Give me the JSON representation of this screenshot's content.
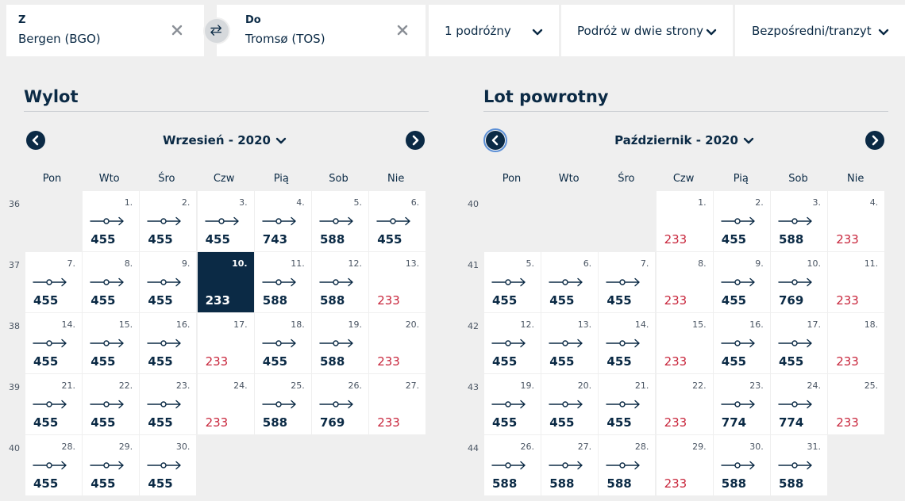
{
  "search": {
    "from": {
      "label": "Z",
      "value": "Bergen (BGO)"
    },
    "to": {
      "label": "Do",
      "value": "Tromsø (TOS)"
    },
    "travelers": "1 podróżny",
    "trip_type": "Podróż w dwie strony",
    "stops": "Bezpośredni/tranzyt"
  },
  "icons": {
    "clear": "close-icon",
    "swap": "swap-icon",
    "dropdown": "chevron-down-icon",
    "flight": "flight-arrow-icon"
  },
  "colors": {
    "navy": "#0b2a45",
    "low_price": "#c8263c",
    "selected_bg": "#0b2a45"
  },
  "departure": {
    "title": "Wylot",
    "month": "Wrzesień - 2020",
    "weekdays": [
      "Pon",
      "Wto",
      "Śro",
      "Czw",
      "Pią",
      "Sob",
      "Nie"
    ],
    "weeks": [
      {
        "num": "36",
        "days": [
          null,
          {
            "d": "1.",
            "p": "455"
          },
          {
            "d": "2.",
            "p": "455"
          },
          {
            "d": "3.",
            "p": "455"
          },
          {
            "d": "4.",
            "p": "743"
          },
          {
            "d": "5.",
            "p": "588"
          },
          {
            "d": "6.",
            "p": "455"
          }
        ]
      },
      {
        "num": "37",
        "days": [
          {
            "d": "7.",
            "p": "455"
          },
          {
            "d": "8.",
            "p": "455"
          },
          {
            "d": "9.",
            "p": "455"
          },
          {
            "d": "10.",
            "p": "233",
            "selected": true
          },
          {
            "d": "11.",
            "p": "588"
          },
          {
            "d": "12.",
            "p": "588"
          },
          {
            "d": "13.",
            "p": "233",
            "low": true
          }
        ]
      },
      {
        "num": "38",
        "days": [
          {
            "d": "14.",
            "p": "455"
          },
          {
            "d": "15.",
            "p": "455"
          },
          {
            "d": "16.",
            "p": "455"
          },
          {
            "d": "17.",
            "p": "233",
            "low": true
          },
          {
            "d": "18.",
            "p": "455"
          },
          {
            "d": "19.",
            "p": "588"
          },
          {
            "d": "20.",
            "p": "233",
            "low": true
          }
        ]
      },
      {
        "num": "39",
        "days": [
          {
            "d": "21.",
            "p": "455"
          },
          {
            "d": "22.",
            "p": "455"
          },
          {
            "d": "23.",
            "p": "455"
          },
          {
            "d": "24.",
            "p": "233",
            "low": true
          },
          {
            "d": "25.",
            "p": "588"
          },
          {
            "d": "26.",
            "p": "769"
          },
          {
            "d": "27.",
            "p": "233",
            "low": true
          }
        ]
      },
      {
        "num": "40",
        "days": [
          {
            "d": "28.",
            "p": "455"
          },
          {
            "d": "29.",
            "p": "455"
          },
          {
            "d": "30.",
            "p": "455"
          },
          null,
          null,
          null,
          null
        ]
      }
    ]
  },
  "return": {
    "title": "Lot powrotny",
    "month": "Październik - 2020",
    "weekdays": [
      "Pon",
      "Wto",
      "Śro",
      "Czw",
      "Pią",
      "Sob",
      "Nie"
    ],
    "weeks": [
      {
        "num": "40",
        "days": [
          null,
          null,
          null,
          {
            "d": "1.",
            "p": "233",
            "low": true
          },
          {
            "d": "2.",
            "p": "455"
          },
          {
            "d": "3.",
            "p": "588"
          },
          {
            "d": "4.",
            "p": "233",
            "low": true
          }
        ]
      },
      {
        "num": "41",
        "days": [
          {
            "d": "5.",
            "p": "455"
          },
          {
            "d": "6.",
            "p": "455"
          },
          {
            "d": "7.",
            "p": "455"
          },
          {
            "d": "8.",
            "p": "233",
            "low": true
          },
          {
            "d": "9.",
            "p": "455"
          },
          {
            "d": "10.",
            "p": "769"
          },
          {
            "d": "11.",
            "p": "233",
            "low": true
          }
        ]
      },
      {
        "num": "42",
        "days": [
          {
            "d": "12.",
            "p": "455"
          },
          {
            "d": "13.",
            "p": "455"
          },
          {
            "d": "14.",
            "p": "455"
          },
          {
            "d": "15.",
            "p": "233",
            "low": true
          },
          {
            "d": "16.",
            "p": "455"
          },
          {
            "d": "17.",
            "p": "455"
          },
          {
            "d": "18.",
            "p": "233",
            "low": true
          }
        ]
      },
      {
        "num": "43",
        "days": [
          {
            "d": "19.",
            "p": "455"
          },
          {
            "d": "20.",
            "p": "455"
          },
          {
            "d": "21.",
            "p": "455"
          },
          {
            "d": "22.",
            "p": "233",
            "low": true
          },
          {
            "d": "23.",
            "p": "774"
          },
          {
            "d": "24.",
            "p": "774"
          },
          {
            "d": "25.",
            "p": "233",
            "low": true
          }
        ]
      },
      {
        "num": "44",
        "days": [
          {
            "d": "26.",
            "p": "588"
          },
          {
            "d": "27.",
            "p": "588"
          },
          {
            "d": "28.",
            "p": "588"
          },
          {
            "d": "29.",
            "p": "233",
            "low": true
          },
          {
            "d": "30.",
            "p": "588"
          },
          {
            "d": "31.",
            "p": "588"
          },
          null
        ]
      }
    ]
  }
}
